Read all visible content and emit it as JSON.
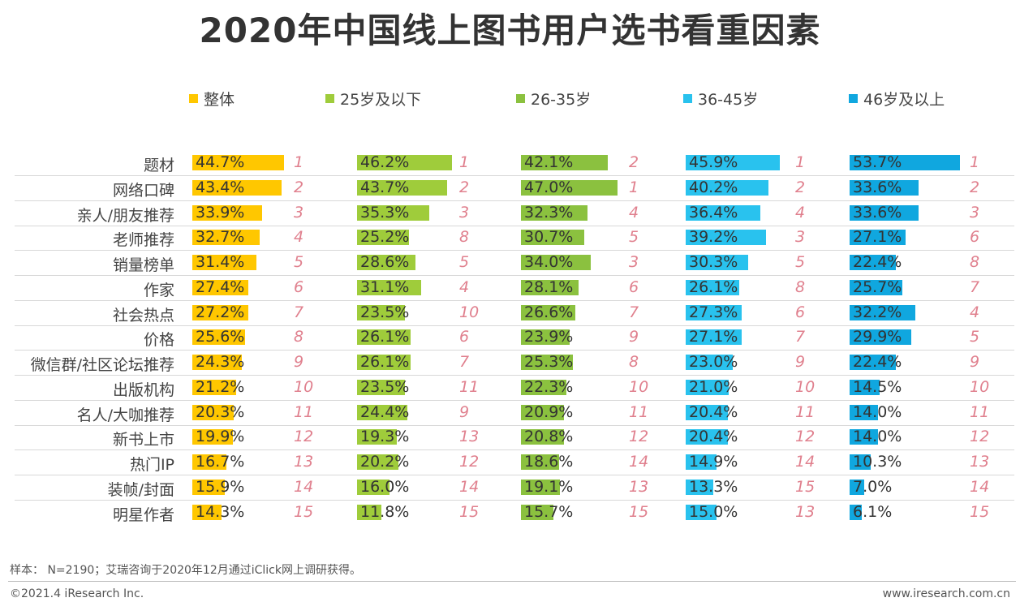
{
  "chart_data": {
    "type": "bar",
    "title": "2020年中国线上图书用户选书看重因素",
    "categories": [
      "题材",
      "网络口碑",
      "亲人/朋友推荐",
      "老师推荐",
      "销量榜单",
      "作家",
      "社会热点",
      "价格",
      "微信群/社区论坛推荐",
      "出版机构",
      "名人/大咖推荐",
      "新书上市",
      "热门IP",
      "装帧/封面",
      "明星作者"
    ],
    "series": [
      {
        "name": "整体",
        "color": "#FFC700",
        "values": [
          44.7,
          43.4,
          33.9,
          32.7,
          31.4,
          27.4,
          27.2,
          25.6,
          24.3,
          21.2,
          20.3,
          19.9,
          16.7,
          15.9,
          14.3
        ],
        "ranks": [
          1,
          2,
          3,
          4,
          5,
          6,
          7,
          8,
          9,
          10,
          11,
          12,
          13,
          14,
          15
        ]
      },
      {
        "name": "25岁及以下",
        "color": "#9FCC3B",
        "values": [
          46.2,
          43.7,
          35.3,
          25.2,
          28.6,
          31.1,
          23.5,
          26.1,
          26.1,
          23.5,
          24.4,
          19.3,
          20.2,
          16.0,
          11.8
        ],
        "ranks": [
          1,
          2,
          3,
          8,
          5,
          4,
          10,
          6,
          7,
          11,
          9,
          13,
          12,
          14,
          15
        ]
      },
      {
        "name": "26-35岁",
        "color": "#8BC13F",
        "values": [
          42.1,
          47.0,
          32.3,
          30.7,
          34.0,
          28.1,
          26.6,
          23.9,
          25.3,
          22.3,
          20.9,
          20.8,
          18.6,
          19.1,
          15.7
        ],
        "ranks": [
          2,
          1,
          4,
          5,
          3,
          6,
          7,
          9,
          8,
          10,
          11,
          12,
          14,
          13,
          15
        ]
      },
      {
        "name": "36-45岁",
        "color": "#29C2EE",
        "values": [
          45.9,
          40.2,
          36.4,
          39.2,
          30.3,
          26.1,
          27.3,
          27.1,
          23.0,
          21.0,
          20.4,
          20.4,
          14.9,
          13.3,
          15.0
        ],
        "ranks": [
          1,
          2,
          4,
          3,
          5,
          8,
          6,
          7,
          9,
          10,
          11,
          12,
          14,
          15,
          13
        ]
      },
      {
        "name": "46岁及以上",
        "color": "#10A7DF",
        "values": [
          53.7,
          33.6,
          33.6,
          27.1,
          22.4,
          25.7,
          32.2,
          29.9,
          22.4,
          14.5,
          14.0,
          14.0,
          10.3,
          7.0,
          6.1
        ],
        "ranks": [
          1,
          2,
          3,
          6,
          8,
          7,
          4,
          5,
          9,
          10,
          11,
          12,
          13,
          14,
          15
        ]
      }
    ],
    "value_suffix": "%",
    "rank_color": "#E0808E",
    "legend_position": "top",
    "grid": false
  },
  "footer": {
    "note": "样本： N=2190；艾瑞咨询于2020年12月通过iClick网上调研获得。",
    "copyright": "©2021.4 iResearch Inc.",
    "website": "www.iresearch.com.cn"
  }
}
